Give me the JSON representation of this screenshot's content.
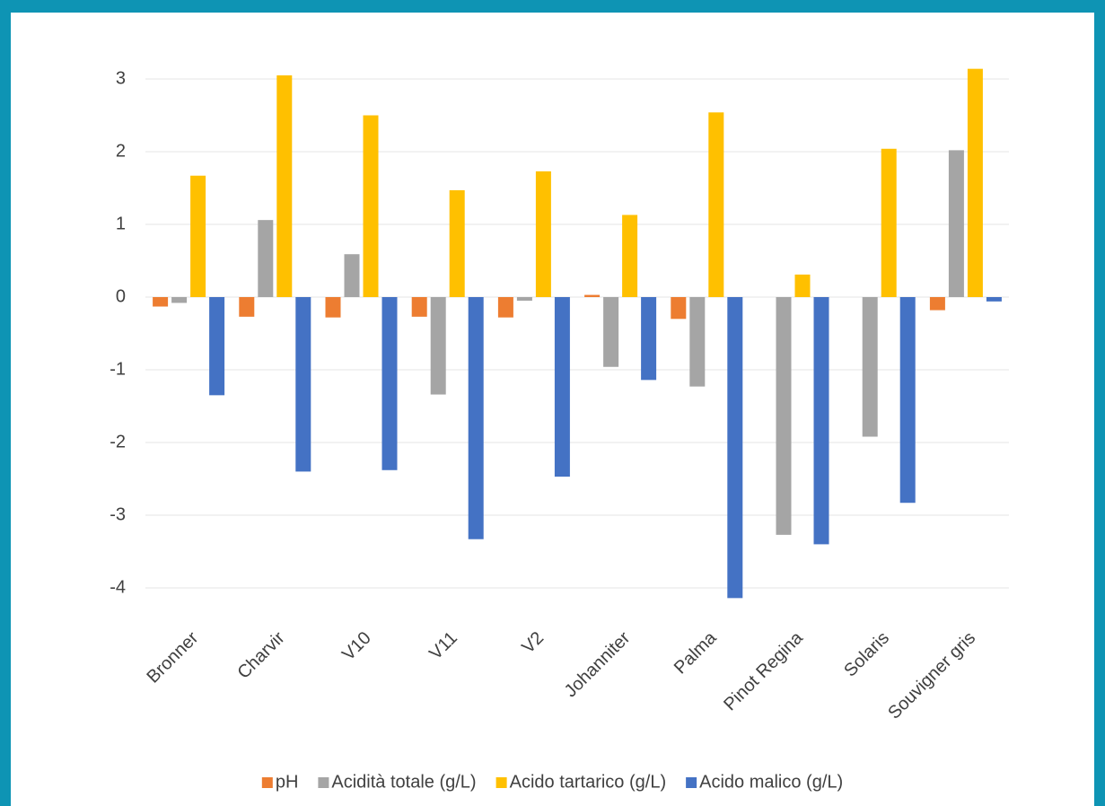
{
  "chart_data": {
    "type": "bar",
    "categories": [
      "Bronner",
      "Charvir",
      "V10",
      "V11",
      "V2",
      "Johanniter",
      "Palma",
      "Pinot Regina",
      "Solaris",
      "Souvigner gris"
    ],
    "series": [
      {
        "name": "pH",
        "color": "#ed7d31",
        "values": [
          -0.13,
          -0.27,
          -0.28,
          -0.27,
          -0.28,
          0.03,
          -0.3,
          0,
          0,
          -0.18
        ]
      },
      {
        "name": "Acidità totale (g/L)",
        "color": "#a5a5a5",
        "values": [
          -0.08,
          1.06,
          0.59,
          -1.34,
          -0.05,
          -0.96,
          -1.23,
          -3.27,
          -1.92,
          2.02
        ]
      },
      {
        "name": "Acido tartarico (g/L)",
        "color": "#ffc000",
        "values": [
          1.67,
          3.05,
          2.5,
          1.47,
          1.73,
          1.13,
          2.54,
          0.31,
          2.04,
          3.14
        ]
      },
      {
        "name": "Acido malico (g/L)",
        "color": "#4472c4",
        "values": [
          -1.35,
          -2.4,
          -2.38,
          -3.33,
          -2.47,
          -1.14,
          -4.14,
          -3.4,
          -2.83,
          -0.06
        ]
      }
    ],
    "ylim": [
      -4.5,
      3.5
    ],
    "yticks": [
      -4,
      -3,
      -2,
      -1,
      0,
      1,
      2,
      3
    ],
    "grid": true,
    "legend": "bottom"
  }
}
